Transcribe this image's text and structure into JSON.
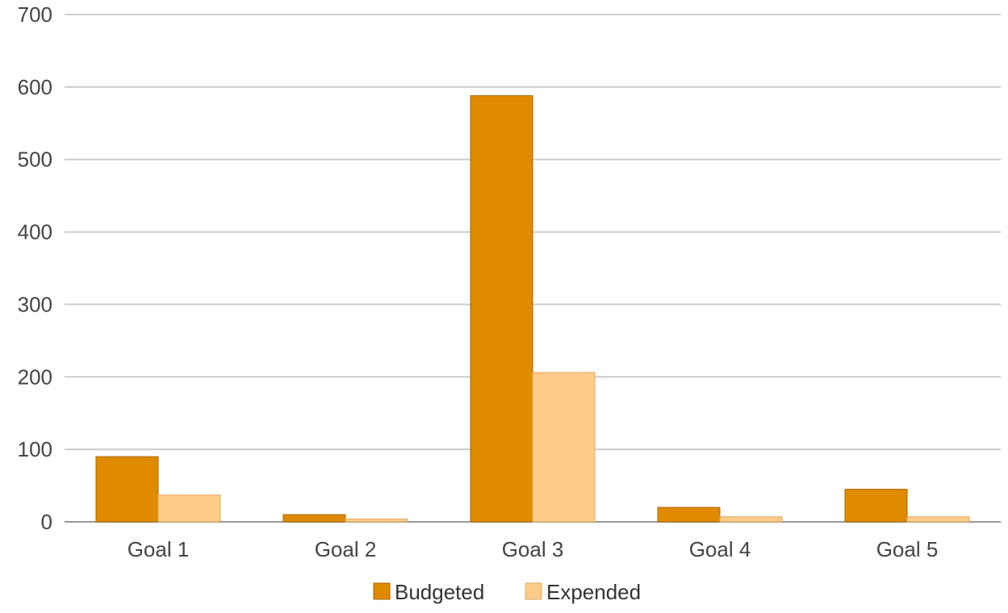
{
  "chart_data": {
    "type": "bar",
    "categories": [
      "Goal 1",
      "Goal 2",
      "Goal 3",
      "Goal 4",
      "Goal 5"
    ],
    "series": [
      {
        "name": "Budgeted",
        "color": "#e08a00",
        "values": [
          90,
          10,
          588,
          20,
          45
        ]
      },
      {
        "name": "Expended",
        "color": "#ffcc88",
        "values": [
          37,
          4,
          206,
          7,
          7
        ]
      }
    ],
    "title": "",
    "xlabel": "",
    "ylabel": "",
    "ylim": [
      0,
      700
    ],
    "yticks": [
      0,
      100,
      200,
      300,
      400,
      500,
      600,
      700
    ],
    "grid": true,
    "legend_position": "bottom"
  }
}
